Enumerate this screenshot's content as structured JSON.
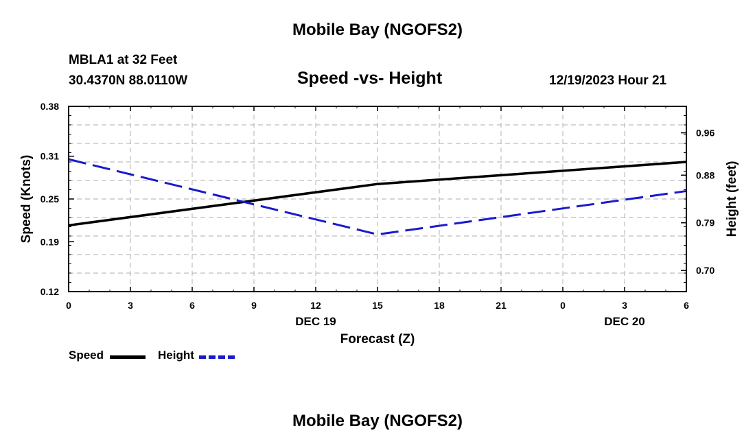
{
  "header": {
    "title": "Mobile Bay (NGOFS2)",
    "station": "MBLA1 at 32 Feet",
    "coordinates": "30.4370N  88.0110W",
    "subtitle": "Speed -vs- Height",
    "timestamp": "12/19/2023 Hour 21"
  },
  "footer": {
    "title": "Mobile Bay (NGOFS2)"
  },
  "chart_data": {
    "type": "line",
    "title": "Speed -vs- Height",
    "xlabel": "Forecast (Z)",
    "ylabel_left": "Speed (Knots)",
    "ylabel_right": "Height (feet)",
    "x_hours": [
      0,
      3,
      6,
      9,
      12,
      15,
      18,
      21,
      24,
      27,
      30
    ],
    "x_tick_labels": [
      "0",
      "3",
      "6",
      "9",
      "12",
      "15",
      "18",
      "21",
      "0",
      "3",
      "6"
    ],
    "date_labels": [
      {
        "label": "DEC 19",
        "at_hour": 12
      },
      {
        "label": "DEC 20",
        "at_hour": 27
      }
    ],
    "xlim": [
      0,
      30
    ],
    "y_left": {
      "ticks": [
        "0.12",
        "0.19",
        "0.25",
        "0.31",
        "0.38"
      ],
      "ylim": [
        0.12,
        0.38
      ]
    },
    "y_right": {
      "ticks": [
        "0.70",
        "0.79",
        "0.88",
        "0.96"
      ],
      "ylim": [
        0.66,
        1.01
      ]
    },
    "grid": true,
    "legend_position": "bottom-left",
    "series": [
      {
        "name": "Speed",
        "axis": "left",
        "color": "#000000",
        "style": "solid",
        "x": [
          0,
          15,
          30
        ],
        "values": [
          0.213,
          0.271,
          0.302
        ]
      },
      {
        "name": "Height",
        "axis": "right",
        "color": "#1a1acc",
        "style": "dashed",
        "x": [
          0,
          15,
          30
        ],
        "values": [
          0.91,
          0.768,
          0.85
        ]
      }
    ]
  }
}
